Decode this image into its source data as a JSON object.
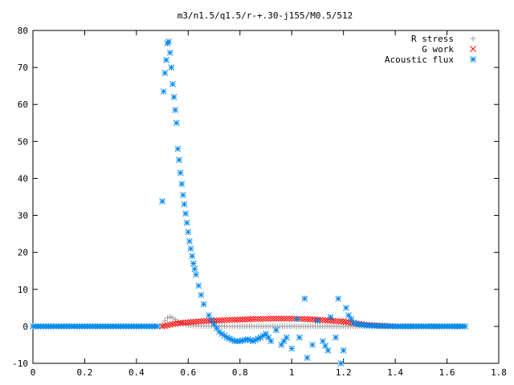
{
  "chart_data": {
    "type": "scatter",
    "title": "m3/n1.5/q1.5/r-+.30-j155/M0.5/512",
    "xlabel": "",
    "ylabel": "",
    "xlim": [
      0,
      1.8
    ],
    "ylim": [
      -10,
      80
    ],
    "x_ticks": [
      "0",
      "0.2",
      "0.4",
      "0.6",
      "0.8",
      "1",
      "1.2",
      "1.4",
      "1.6",
      "1.8"
    ],
    "y_ticks": [
      "-10",
      "0",
      "10",
      "20",
      "30",
      "40",
      "50",
      "60",
      "70",
      "80"
    ],
    "grid": false,
    "legend_position": "top-right",
    "series": [
      {
        "name": "R stress",
        "marker": "+",
        "color": "#a0a0a0",
        "x": [
          0.0,
          0.05,
          0.1,
          0.15,
          0.2,
          0.25,
          0.3,
          0.35,
          0.4,
          0.45,
          0.49,
          0.5,
          0.51,
          0.52,
          0.53,
          0.54,
          0.55,
          0.56,
          0.57,
          0.58,
          0.6,
          0.62,
          0.64,
          0.66,
          0.7,
          0.75,
          0.8,
          0.9,
          1.0,
          1.1,
          1.2,
          1.3,
          1.4,
          1.5,
          1.6,
          1.67
        ],
        "y": [
          0,
          0,
          0,
          0,
          0,
          0,
          0,
          0,
          0,
          0,
          0,
          0.5,
          1.5,
          2.3,
          2.6,
          2.3,
          1.8,
          1.3,
          0.9,
          0.6,
          0.3,
          0.2,
          0.1,
          0.1,
          0.1,
          0,
          0,
          0,
          0,
          0,
          0,
          0,
          0,
          0,
          0,
          0
        ]
      },
      {
        "name": "G work",
        "marker": "x",
        "color": "#ff0000",
        "x": [
          0.5,
          0.52,
          0.54,
          0.56,
          0.58,
          0.6,
          0.62,
          0.64,
          0.66,
          0.68,
          0.7,
          0.72,
          0.74,
          0.76,
          0.78,
          0.8,
          0.82,
          0.84,
          0.86,
          0.88,
          0.9,
          0.92,
          0.94,
          0.96,
          0.98,
          1.0,
          1.02,
          1.04,
          1.06,
          1.08,
          1.1,
          1.12,
          1.14,
          1.16,
          1.18,
          1.2,
          1.22,
          1.24,
          1.26,
          1.28,
          1.3,
          1.35,
          1.4
        ],
        "y": [
          0.0,
          0.3,
          0.6,
          0.8,
          1.0,
          1.1,
          1.2,
          1.3,
          1.4,
          1.5,
          1.55,
          1.6,
          1.7,
          1.75,
          1.8,
          1.85,
          1.9,
          1.95,
          2.0,
          2.0,
          2.05,
          2.1,
          2.1,
          2.1,
          2.1,
          2.1,
          2.05,
          2.0,
          1.95,
          1.9,
          1.8,
          1.7,
          1.6,
          1.5,
          1.4,
          1.3,
          1.1,
          0.9,
          0.7,
          0.5,
          0.35,
          0.2,
          0.0
        ]
      },
      {
        "name": "Acoustic flux",
        "marker": "*",
        "color": "#0088ee",
        "x": [
          0.0,
          0.05,
          0.1,
          0.15,
          0.2,
          0.25,
          0.3,
          0.35,
          0.4,
          0.45,
          0.48,
          0.5,
          0.505,
          0.51,
          0.515,
          0.52,
          0.525,
          0.53,
          0.535,
          0.54,
          0.545,
          0.55,
          0.555,
          0.56,
          0.565,
          0.57,
          0.575,
          0.58,
          0.585,
          0.59,
          0.595,
          0.6,
          0.605,
          0.61,
          0.615,
          0.62,
          0.625,
          0.63,
          0.64,
          0.65,
          0.66,
          0.68,
          0.7,
          0.72,
          0.75,
          0.78,
          0.8,
          0.83,
          0.85,
          0.88,
          0.9,
          0.92,
          0.94,
          0.96,
          0.98,
          1.0,
          1.02,
          1.03,
          1.05,
          1.06,
          1.08,
          1.1,
          1.12,
          1.14,
          1.15,
          1.17,
          1.18,
          1.19,
          1.2,
          1.21,
          1.22,
          1.24,
          1.26,
          1.3,
          1.35,
          1.4,
          1.45,
          1.5,
          1.55,
          1.6,
          1.65,
          1.67
        ],
        "y": [
          0,
          0,
          0,
          0,
          0,
          0,
          0,
          0,
          0,
          0,
          0,
          33.8,
          63.5,
          68.5,
          72,
          76.5,
          77,
          74,
          70,
          65.5,
          62,
          58.5,
          55,
          48,
          45,
          41.5,
          38.5,
          35.5,
          33,
          30.5,
          28,
          25.5,
          23,
          21,
          19,
          17,
          15.5,
          14,
          11,
          8.5,
          6,
          3,
          0.5,
          -1.5,
          -3,
          -4,
          -4,
          -3.5,
          -4,
          -3,
          -2,
          -4,
          -1,
          -5,
          -3,
          -6,
          2,
          -3,
          7.5,
          -8.5,
          -5,
          1.5,
          -4,
          -6.5,
          2.5,
          -3,
          7.5,
          -10,
          -6.5,
          5,
          3,
          1,
          0.5,
          0.2,
          0.1,
          0,
          0,
          0,
          0,
          0,
          0,
          0
        ]
      }
    ]
  }
}
